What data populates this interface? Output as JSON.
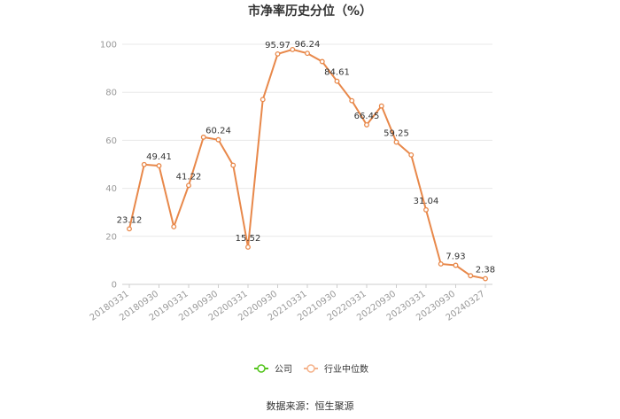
{
  "chart_data": {
    "type": "line",
    "title": "市净率历史分位（%）",
    "ylim": [
      0,
      100
    ],
    "yticks": [
      0,
      20,
      40,
      60,
      80,
      100
    ],
    "grid": true,
    "x": [
      "20180331",
      "20180630",
      "20180930",
      "20181231",
      "20190331",
      "20190630",
      "20190930",
      "20191231",
      "20200331",
      "20200630",
      "20200930",
      "20201231",
      "20210331",
      "20210630",
      "20210930",
      "20211231",
      "20220331",
      "20220630",
      "20220930",
      "20221231",
      "20230331",
      "20230630",
      "20230930",
      "20231231",
      "20240327"
    ],
    "xtick_labels": [
      "20180331",
      "20180930",
      "20190331",
      "20190930",
      "20200331",
      "20200930",
      "20210331",
      "20210930",
      "20220331",
      "20220930",
      "20230331",
      "20230930",
      "20240327"
    ],
    "series": [
      {
        "name": "行业中位数",
        "color": "#e8884a",
        "values": [
          23.12,
          49.9,
          49.41,
          24.0,
          41.22,
          61.3,
          60.24,
          49.6,
          15.52,
          77.0,
          95.97,
          97.8,
          96.24,
          92.8,
          84.61,
          76.5,
          66.45,
          74.3,
          59.25,
          53.9,
          31.04,
          8.5,
          7.93,
          3.6,
          2.38
        ]
      }
    ],
    "data_labels": [
      {
        "index": 0,
        "text": "23.12"
      },
      {
        "index": 2,
        "text": "49.41"
      },
      {
        "index": 4,
        "text": "41.22"
      },
      {
        "index": 6,
        "text": "60.24"
      },
      {
        "index": 8,
        "text": "15.52"
      },
      {
        "index": 10,
        "text": "95.97"
      },
      {
        "index": 12,
        "text": "96.24"
      },
      {
        "index": 14,
        "text": "84.61"
      },
      {
        "index": 16,
        "text": "66.45"
      },
      {
        "index": 18,
        "text": "59.25"
      },
      {
        "index": 20,
        "text": "31.04"
      },
      {
        "index": 22,
        "text": "7.93"
      },
      {
        "index": 24,
        "text": "2.38"
      }
    ]
  },
  "legend": [
    {
      "label": "公司",
      "color": "#52c41a",
      "icon": "circle-line-icon"
    },
    {
      "label": "行业中位数",
      "color": "#f5b28a",
      "icon": "circle-line-icon"
    }
  ],
  "source": "数据来源：恒生聚源"
}
